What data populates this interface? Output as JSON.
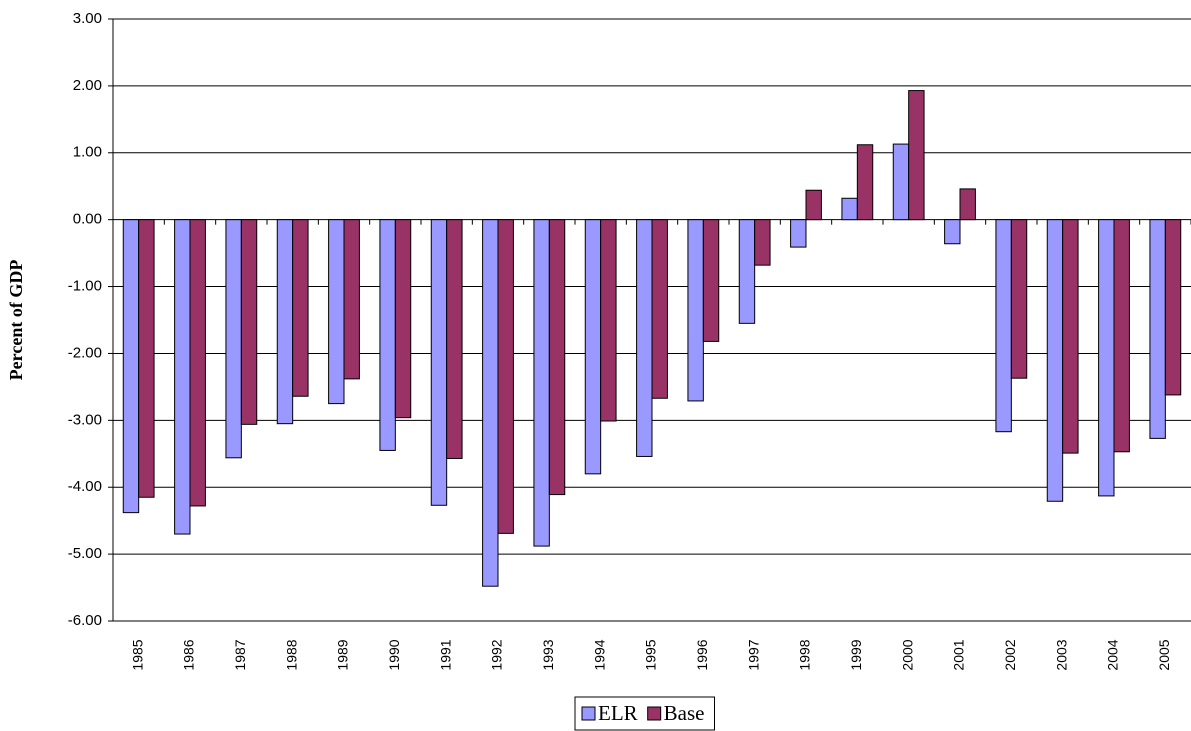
{
  "chart_data": {
    "type": "bar",
    "y_label": "Percent of GDP",
    "categories": [
      "1985",
      "1986",
      "1987",
      "1988",
      "1989",
      "1990",
      "1991",
      "1992",
      "1993",
      "1994",
      "1995",
      "1996",
      "1997",
      "1998",
      "1999",
      "2000",
      "2001",
      "2002",
      "2003",
      "2004",
      "2005"
    ],
    "series": [
      {
        "name": "ELR",
        "color": "#9999ff",
        "values": [
          -4.38,
          -4.7,
          -3.56,
          -3.05,
          -2.75,
          -3.45,
          -4.27,
          -5.48,
          -4.88,
          -3.8,
          -3.54,
          -2.71,
          -1.55,
          -0.41,
          0.32,
          1.13,
          -0.36,
          -3.17,
          -4.21,
          -4.13,
          -3.27
        ]
      },
      {
        "name": "Base",
        "color": "#993366",
        "values": [
          -4.15,
          -4.28,
          -3.06,
          -2.64,
          -2.38,
          -2.96,
          -3.57,
          -4.69,
          -4.11,
          -3.01,
          -2.67,
          -1.82,
          -0.68,
          0.44,
          1.12,
          1.93,
          0.46,
          -2.37,
          -3.49,
          -3.47,
          -2.62
        ]
      }
    ],
    "ylim": [
      -6,
      3
    ],
    "yticks": [
      {
        "value": -6,
        "label": "-6.00"
      },
      {
        "value": -5,
        "label": "-5.00"
      },
      {
        "value": -4,
        "label": "-4.00"
      },
      {
        "value": -3,
        "label": "-3.00"
      },
      {
        "value": -2,
        "label": "-2.00"
      },
      {
        "value": -1,
        "label": "-1.00"
      },
      {
        "value": 0,
        "label": "0.00"
      },
      {
        "value": 1,
        "label": "1.00"
      },
      {
        "value": 2,
        "label": "2.00"
      },
      {
        "value": 3,
        "label": "3.00"
      }
    ],
    "grid": true,
    "legend": "bottom"
  }
}
